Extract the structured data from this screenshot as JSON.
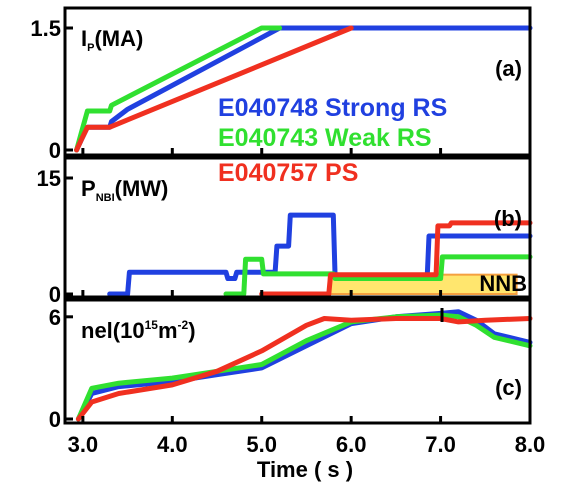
{
  "chart_data": [
    {
      "type": "line",
      "panel_label": "(a)",
      "ylabel_main": "I",
      "ylabel_sub": "P",
      "ylabel_unit": "(MA)",
      "xlim": [
        2.8,
        8.0
      ],
      "ylim": [
        0,
        1.5
      ],
      "yticks": [
        "1.5",
        "0"
      ],
      "ytick_values": [
        1.5,
        0
      ],
      "series": [
        {
          "name": "E040748 Strong RS",
          "color": "#2040e0",
          "x": [
            2.93,
            2.98,
            3.05,
            3.3,
            3.32,
            3.5,
            5.2,
            8.0
          ],
          "y": [
            0.0,
            0.12,
            0.28,
            0.28,
            0.35,
            0.5,
            1.5,
            1.5
          ]
        },
        {
          "name": "E040743 Weak RS",
          "color": "#30e030",
          "x": [
            2.93,
            2.98,
            3.05,
            3.3,
            3.32,
            5.0,
            5.2
          ],
          "y": [
            0.0,
            0.2,
            0.48,
            0.48,
            0.55,
            1.5,
            1.5
          ]
        },
        {
          "name": "E040757 PS",
          "color": "#f03020",
          "x": [
            2.93,
            2.98,
            3.05,
            3.3,
            6.0
          ],
          "y": [
            0.0,
            0.12,
            0.28,
            0.28,
            1.5
          ]
        }
      ]
    },
    {
      "type": "line",
      "panel_label": "(b)",
      "ylabel_main": "P",
      "ylabel_sub": "NBI",
      "ylabel_unit": "(MW)",
      "xlim": [
        2.8,
        8.0
      ],
      "ylim": [
        0,
        15
      ],
      "yticks": [
        "15",
        "0"
      ],
      "ytick_values": [
        15,
        0
      ],
      "annotation": "NNB",
      "nnb_band": {
        "x": [
          5.75,
          7.85
        ],
        "y": [
          0.0,
          2.5
        ],
        "color": "#ffe66e"
      },
      "series": [
        {
          "name": "E040748 Strong RS",
          "color": "#2040e0",
          "x": [
            3.3,
            3.5,
            3.52,
            4.6,
            4.62,
            4.7,
            4.72,
            5.15,
            5.17,
            5.3,
            5.32,
            5.8,
            5.82,
            6.85,
            6.87,
            8.0
          ],
          "y": [
            0.0,
            0.0,
            2.8,
            2.8,
            2.0,
            2.0,
            2.8,
            2.8,
            6.2,
            6.2,
            10.2,
            10.2,
            2.2,
            2.2,
            7.5,
            7.5
          ]
        },
        {
          "name": "E040743 Weak RS",
          "color": "#30e030",
          "x": [
            4.6,
            4.8,
            4.82,
            5.0,
            5.02,
            5.8,
            5.82,
            7.0,
            7.02,
            8.0
          ],
          "y": [
            0.0,
            0.0,
            4.5,
            4.5,
            2.6,
            2.6,
            2.0,
            2.0,
            4.8,
            4.8
          ]
        },
        {
          "name": "E040757 PS",
          "color": "#f03020",
          "x": [
            5.0,
            5.75,
            5.77,
            6.95,
            6.97,
            7.1,
            7.12,
            8.0
          ],
          "y": [
            0.0,
            0.0,
            2.5,
            2.5,
            8.8,
            8.8,
            9.2,
            9.2
          ]
        }
      ]
    },
    {
      "type": "line",
      "panel_label": "(c)",
      "ylabel_main": "nel(10",
      "ylabel_sup": "15",
      "ylabel_mid": "m",
      "ylabel_sup2": "-2",
      "ylabel_end": ")",
      "xlim": [
        2.8,
        8.0
      ],
      "ylim": [
        0,
        6.4
      ],
      "yticks": [
        "6",
        "0"
      ],
      "ytick_values": [
        6,
        0
      ],
      "xticks": [
        "3.0",
        "4.0",
        "5.0",
        "6.0",
        "7.0",
        "8.0"
      ],
      "xtick_values": [
        3.0,
        4.0,
        5.0,
        6.0,
        7.0,
        8.0
      ],
      "xlabel": "Time ( s )",
      "series": [
        {
          "name": "E040748 Strong RS",
          "color": "#2040e0",
          "x": [
            2.95,
            3.1,
            3.4,
            4.0,
            4.5,
            5.0,
            5.5,
            6.0,
            6.5,
            7.0,
            7.2,
            7.4,
            7.6,
            8.0
          ],
          "y": [
            0.0,
            1.5,
            1.9,
            2.2,
            2.6,
            3.0,
            4.3,
            5.6,
            6.0,
            6.2,
            6.3,
            5.8,
            5.0,
            4.5
          ]
        },
        {
          "name": "E040743 Weak RS",
          "color": "#30e030",
          "x": [
            2.95,
            3.1,
            3.4,
            4.0,
            4.5,
            5.0,
            5.5,
            6.0,
            6.5,
            7.0,
            7.2,
            7.4,
            7.6,
            8.0
          ],
          "y": [
            0.0,
            1.8,
            2.1,
            2.4,
            2.8,
            3.2,
            4.6,
            5.7,
            6.0,
            6.1,
            6.0,
            5.5,
            4.8,
            4.3
          ]
        },
        {
          "name": "E040757 PS",
          "color": "#f03020",
          "x": [
            2.95,
            3.1,
            3.4,
            4.0,
            4.5,
            5.0,
            5.5,
            5.7,
            6.0,
            6.5,
            7.0,
            7.2,
            7.5,
            8.0
          ],
          "y": [
            0.0,
            1.0,
            1.5,
            2.0,
            2.8,
            4.0,
            5.5,
            5.9,
            5.8,
            5.9,
            5.9,
            5.7,
            5.8,
            5.9
          ]
        }
      ]
    }
  ],
  "legend": [
    {
      "label": "E040748 Strong RS",
      "color": "#2040e0"
    },
    {
      "label": "E040743 Weak RS",
      "color": "#30e030"
    },
    {
      "label": "E040757 PS",
      "color": "#f03020"
    }
  ]
}
